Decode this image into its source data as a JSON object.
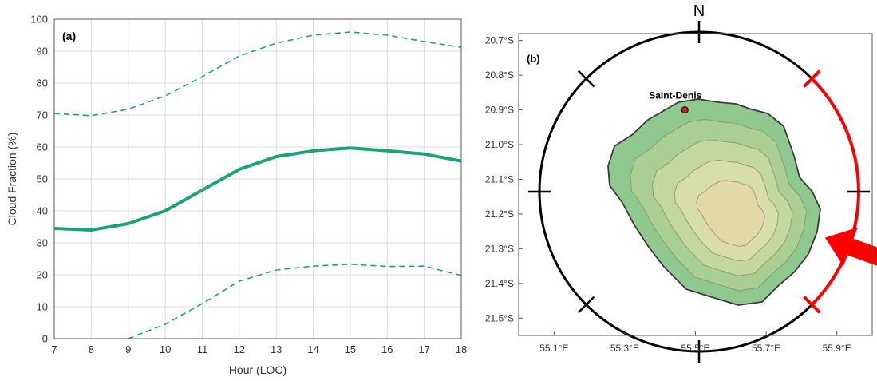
{
  "panel_a_label": "(a)",
  "panel_b_label": "(b)",
  "chart_data": [
    {
      "type": "line",
      "xlabel": "Hour (LOC)",
      "ylabel": "Cloud Fraction (%)",
      "xlim": [
        7,
        18
      ],
      "ylim": [
        0,
        100
      ],
      "xticks": [
        "7",
        "8",
        "9",
        "10",
        "11",
        "12",
        "13",
        "14",
        "15",
        "16",
        "17",
        "18"
      ],
      "yticks": [
        "0",
        "10",
        "20",
        "30",
        "40",
        "50",
        "60",
        "70",
        "80",
        "90",
        "100"
      ],
      "grid": true,
      "color": "#1aa37a",
      "series": [
        {
          "style": "solid",
          "x": [
            7,
            8,
            9,
            10,
            11,
            12,
            13,
            14,
            15,
            16,
            17,
            18
          ],
          "values": [
            34.5,
            34,
            36,
            40,
            46.5,
            53,
            57,
            58.8,
            59.7,
            58.8,
            57.8,
            55.6
          ]
        },
        {
          "style": "dashed",
          "x": [
            7,
            8,
            9,
            10,
            11,
            12,
            13,
            14,
            15,
            16,
            17,
            18
          ],
          "values": [
            70.5,
            69.8,
            71.8,
            76,
            82,
            88.5,
            92.5,
            95,
            96,
            95,
            93,
            91.2
          ]
        },
        {
          "style": "dashed",
          "x": [
            9,
            10,
            11,
            12,
            13,
            14,
            15,
            16,
            17,
            18
          ],
          "values": [
            0,
            4.5,
            11,
            18,
            21.5,
            22.7,
            23.3,
            22.6,
            22.7,
            19.8
          ]
        }
      ]
    },
    {
      "type": "map",
      "xlim": [
        55.0,
        56.0
      ],
      "ylim": [
        -21.55,
        -20.68
      ],
      "xticks": [
        {
          "value": 55.1,
          "label": "55.1°E"
        },
        {
          "value": 55.3,
          "label": "55.3°E"
        },
        {
          "value": 55.5,
          "label": "55.5°E"
        },
        {
          "value": 55.7,
          "label": "55.7°E"
        },
        {
          "value": 55.9,
          "label": "55.9°E"
        }
      ],
      "yticks": [
        {
          "value": -20.7,
          "label": "20.7°S"
        },
        {
          "value": -20.8,
          "label": "20.8°S"
        },
        {
          "value": -20.9,
          "label": "20.9°S"
        },
        {
          "value": -21.0,
          "label": "21.0°S"
        },
        {
          "value": -21.1,
          "label": "21.1°S"
        },
        {
          "value": -21.2,
          "label": "21.2°S"
        },
        {
          "value": -21.3,
          "label": "21.3°S"
        },
        {
          "value": -21.4,
          "label": "21.4°S"
        },
        {
          "value": -21.5,
          "label": "21.5°S"
        }
      ],
      "north_label": "N",
      "city": {
        "name": "Saint-Denis",
        "lon": 55.47,
        "lat": -20.9
      },
      "island_colors": [
        "#8fc98f",
        "#a9cf92",
        "#c2d89c",
        "#d8dea8",
        "#e3d9a6"
      ],
      "wind_arc_color": "#ff0000",
      "wind_sector_deg": [
        45,
        135
      ],
      "wind_arrow_from_deg": 110
    }
  ]
}
